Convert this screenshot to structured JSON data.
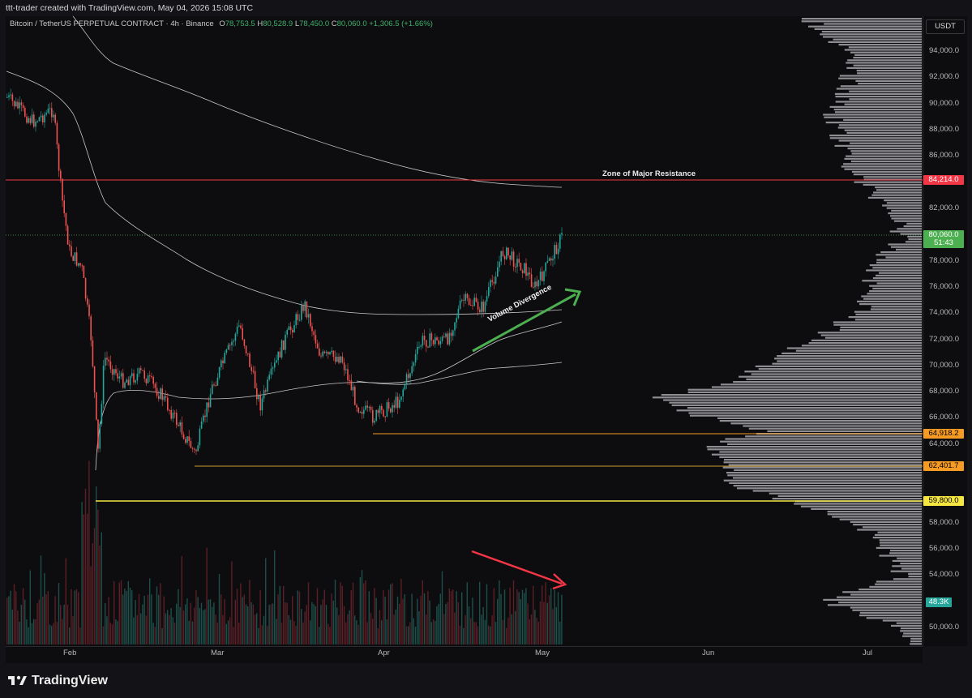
{
  "header": {
    "publisher": "ttt-trader created with TradingView.com, May 04, 2026 15:08 UTC"
  },
  "legend": {
    "symbol": "Bitcoin / TetherUS PERPETUAL CONTRACT · 4h · Binance",
    "open_label": "O",
    "open": "78,753.5",
    "high_label": "H",
    "high": "80,528.9",
    "low_label": "L",
    "low": "78,450.0",
    "close_label": "C",
    "close": "80,060.0",
    "change": "+1,306.5 (+1.66%)"
  },
  "price_axis": {
    "currency": "USDT",
    "ticks": [
      "94,000.0",
      "92,000.0",
      "90,000.0",
      "88,000.0",
      "86,000.0",
      "82,000.0",
      "78,000.0",
      "76,000.0",
      "74,000.0",
      "72,000.0",
      "70,000.0",
      "68,000.0",
      "66,000.0",
      "64,000.0",
      "58,000.0",
      "56,000.0",
      "54,000.0",
      "50,000.0"
    ]
  },
  "price_labels": {
    "resistance": "84,214.0",
    "current": "80,060.0",
    "countdown": "51:43",
    "support_1": "64,918.2",
    "support_2": "62,401.7",
    "support_3": "59,800.0",
    "volume": "48.3K"
  },
  "time_axis": {
    "ticks": [
      "Feb",
      "Mar",
      "Apr",
      "May",
      "Jun",
      "Jul"
    ]
  },
  "annotations": {
    "resistance_zone": "Zone of Major Resistance",
    "divergence": "Volume Divergence"
  },
  "footer": {
    "brand": "TradingView"
  },
  "colors": {
    "up_candle": "#26a69a",
    "down_candle": "#ef5350",
    "resistance_line": "#f23645",
    "support_orange": "#f59a23",
    "support_yellow": "#f5e642",
    "divergence_arrow": "#4caf50",
    "volume_arrow": "#f23645",
    "current_price": "#4caf50"
  }
}
